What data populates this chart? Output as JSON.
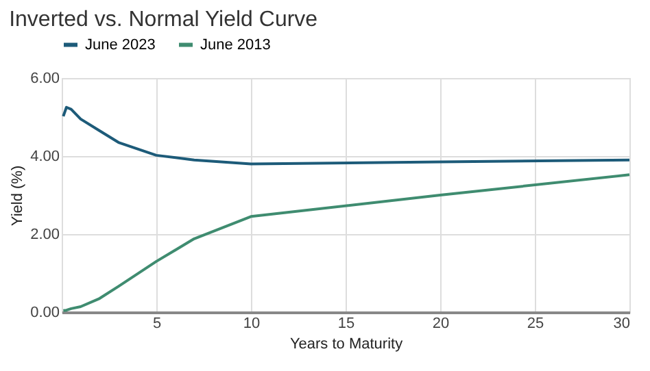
{
  "chart_data": {
    "type": "line",
    "title": "Inverted vs. Normal Yield Curve",
    "xlabel": "Years to Maturity",
    "ylabel": "Yield (%)",
    "x": [
      0.083,
      0.25,
      0.5,
      1,
      2,
      3,
      5,
      7,
      10,
      20,
      30
    ],
    "series": [
      {
        "name": "June 2023",
        "color": "#1d5b79",
        "values": [
          5.02,
          5.25,
          5.2,
          4.95,
          4.65,
          4.35,
          4.02,
          3.9,
          3.8,
          3.85,
          3.9
        ]
      },
      {
        "name": "June 2013",
        "color": "#3f8c70",
        "values": [
          0.04,
          0.05,
          0.09,
          0.14,
          0.35,
          0.66,
          1.3,
          1.88,
          2.45,
          3.0,
          3.52
        ]
      }
    ],
    "xlim": [
      0,
      30
    ],
    "xticks": [
      5,
      10,
      15,
      20,
      25,
      30
    ],
    "ylim": [
      0,
      6
    ],
    "yticks": [
      {
        "value": 0,
        "label": "0.00"
      },
      {
        "value": 2,
        "label": "2.00"
      },
      {
        "value": 4,
        "label": "4.00"
      },
      {
        "value": 6,
        "label": "6.00"
      }
    ],
    "grid": true,
    "legend": "top",
    "marker": "none",
    "line_style": "solid"
  }
}
